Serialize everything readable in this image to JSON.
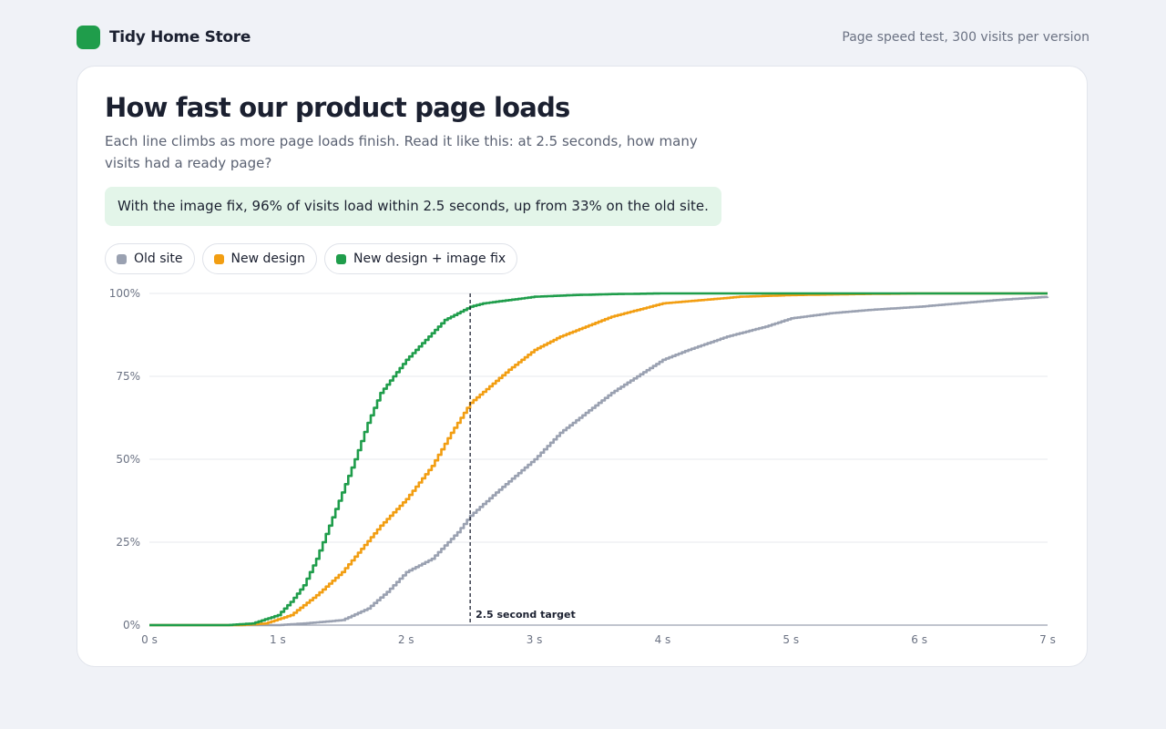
{
  "header": {
    "brand": "Tidy Home Store",
    "meta": "Page speed test, 300 visits per version"
  },
  "card": {
    "title": "How fast our product page loads",
    "subtitle": "Each line climbs as more page loads finish. Read it like this: at 2.5 seconds, how many visits had a ready page?",
    "callout": "With the image fix, 96% of visits load within 2.5 seconds, up from 33% on the old site."
  },
  "legend": [
    {
      "label": "Old site",
      "color": "#9aa1b1"
    },
    {
      "label": "New design",
      "color": "#f29e12"
    },
    {
      "label": "New design + image fix",
      "color": "#1f9d4b"
    }
  ],
  "chart_data": {
    "type": "line",
    "xlim": [
      0,
      7
    ],
    "ylim": [
      0,
      100
    ],
    "x_ticks": [
      0,
      1,
      2,
      3,
      4,
      5,
      6,
      7
    ],
    "x_tick_labels": [
      "0 s",
      "1 s",
      "2 s",
      "3 s",
      "4 s",
      "5 s",
      "6 s",
      "7 s"
    ],
    "y_ticks": [
      0,
      25,
      50,
      75,
      100
    ],
    "y_tick_labels": [
      "0%",
      "25%",
      "50%",
      "75%",
      "100%"
    ],
    "grid": "horizontal",
    "legend_position": "top-left",
    "series": [
      {
        "name": "Old site",
        "color": "#9aa1b1",
        "x": [
          0,
          1.0,
          1.2,
          1.5,
          1.7,
          1.85,
          2.0,
          2.2,
          2.4,
          2.5,
          2.7,
          3.0,
          3.2,
          3.4,
          3.6,
          3.8,
          4.0,
          4.2,
          4.5,
          4.8,
          5.0,
          5.3,
          5.6,
          6.0,
          6.3,
          6.6,
          7.0
        ],
        "y": [
          0,
          0,
          0.5,
          1.5,
          5,
          10,
          16,
          20,
          28,
          33,
          40,
          50,
          58,
          64,
          70,
          75,
          80,
          83,
          87,
          90,
          92.5,
          94,
          95,
          96,
          97,
          98,
          99
        ]
      },
      {
        "name": "New design",
        "color": "#f29e12",
        "x": [
          0,
          0.7,
          0.9,
          1.1,
          1.3,
          1.5,
          1.65,
          1.8,
          2.0,
          2.2,
          2.35,
          2.5,
          2.65,
          2.8,
          3.0,
          3.2,
          3.4,
          3.6,
          3.8,
          4.0,
          4.3,
          4.6,
          5.0,
          5.5,
          6.0,
          7.0
        ],
        "y": [
          0,
          0,
          0.5,
          3,
          9,
          16,
          23,
          30,
          38,
          48,
          58,
          67,
          72,
          77,
          83,
          87,
          90,
          93,
          95,
          97,
          98,
          99,
          99.5,
          99.8,
          100,
          100
        ]
      },
      {
        "name": "New design + image fix",
        "color": "#1f9d4b",
        "x": [
          0,
          0.6,
          0.8,
          1.0,
          1.1,
          1.2,
          1.3,
          1.4,
          1.5,
          1.6,
          1.7,
          1.8,
          1.9,
          2.0,
          2.1,
          2.2,
          2.3,
          2.4,
          2.5,
          2.6,
          2.8,
          3.0,
          3.3,
          3.6,
          4.0,
          5.0,
          7.0
        ],
        "y": [
          0,
          0,
          0.5,
          3,
          7,
          12,
          20,
          30,
          40,
          50,
          61,
          70,
          75,
          80,
          84,
          88,
          92,
          94,
          96,
          97,
          98,
          99,
          99.5,
          99.8,
          100,
          100,
          100
        ]
      }
    ],
    "annotations": [
      {
        "type": "vline",
        "x": 2.5,
        "label": "2.5 second target"
      }
    ]
  }
}
